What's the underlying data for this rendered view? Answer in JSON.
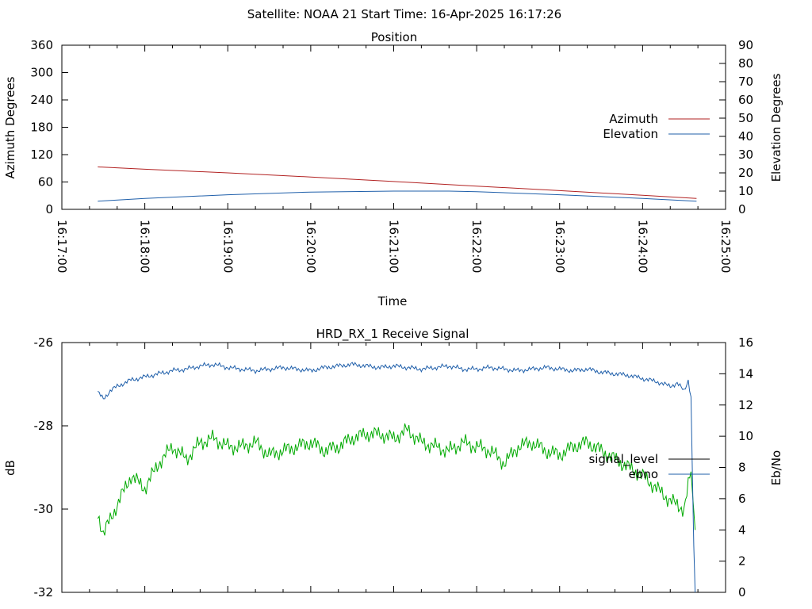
{
  "header": {
    "title": "Satellite: NOAA 21    Start Time: 16-Apr-2025 16:17:26"
  },
  "chart_data": [
    {
      "type": "line",
      "title": "Position",
      "xlabel": "Time",
      "ylabel": "Azimuth Degrees",
      "y2label": "Elevation Degrees",
      "x_ticks": [
        "16:17:00",
        "16:18:00",
        "16:19:00",
        "16:20:00",
        "16:21:00",
        "16:22:00",
        "16:23:00",
        "16:24:00",
        "16:25:00"
      ],
      "xlim_seconds": [
        1020,
        1500
      ],
      "ylim": [
        0,
        360
      ],
      "y_ticks": [
        "0",
        "60",
        "120",
        "180",
        "240",
        "300",
        "360"
      ],
      "y2lim": [
        0,
        90
      ],
      "y2_ticks": [
        "0",
        "10",
        "20",
        "30",
        "40",
        "50",
        "60",
        "70",
        "80",
        "90"
      ],
      "legend": "right",
      "grid": false,
      "series": [
        {
          "name": "Azimuth",
          "axis": "y",
          "color": "#b22222",
          "x_seconds": [
            1046,
            1080,
            1140,
            1200,
            1260,
            1320,
            1380,
            1440,
            1479
          ],
          "values": [
            93,
            88,
            80,
            71,
            61,
            51,
            41,
            31,
            24
          ]
        },
        {
          "name": "Elevation",
          "axis": "y2",
          "color": "#1f5faa",
          "x_seconds": [
            1046,
            1080,
            1140,
            1200,
            1260,
            1300,
            1320,
            1380,
            1440,
            1479
          ],
          "values": [
            4.5,
            6,
            8,
            9.5,
            10,
            10,
            9.7,
            8,
            6,
            4.5
          ]
        }
      ]
    },
    {
      "type": "line",
      "title": "HRD_RX_1 Receive Signal",
      "ylabel": "dB",
      "y2label": "Eb/No",
      "xlim_seconds": [
        1020,
        1500
      ],
      "ylim": [
        -32,
        -26
      ],
      "y_ticks": [
        "-26",
        "-28",
        "-30",
        "-32"
      ],
      "y2lim": [
        0,
        16
      ],
      "y2_ticks": [
        "0",
        "2",
        "4",
        "6",
        "8",
        "10",
        "12",
        "14",
        "16"
      ],
      "legend": "right",
      "grid": false,
      "series": [
        {
          "name": "signal_level",
          "axis": "y",
          "color": "#00aa00",
          "legend_color": "#000000",
          "x_seconds": [
            1046,
            1050,
            1060,
            1070,
            1080,
            1090,
            1100,
            1110,
            1120,
            1130,
            1140,
            1150,
            1160,
            1170,
            1180,
            1190,
            1200,
            1210,
            1220,
            1230,
            1240,
            1250,
            1260,
            1270,
            1280,
            1290,
            1300,
            1310,
            1320,
            1330,
            1340,
            1350,
            1360,
            1370,
            1380,
            1390,
            1400,
            1410,
            1420,
            1430,
            1440,
            1450,
            1460,
            1470,
            1475,
            1478
          ],
          "values": [
            -30.1,
            -30.6,
            -29.9,
            -29.2,
            -29.5,
            -28.9,
            -28.5,
            -28.8,
            -28.4,
            -28.3,
            -28.5,
            -28.5,
            -28.4,
            -28.7,
            -28.6,
            -28.5,
            -28.4,
            -28.6,
            -28.5,
            -28.3,
            -28.2,
            -28.2,
            -28.3,
            -28.1,
            -28.4,
            -28.5,
            -28.6,
            -28.4,
            -28.5,
            -28.6,
            -28.9,
            -28.5,
            -28.4,
            -28.6,
            -28.7,
            -28.5,
            -28.4,
            -28.6,
            -28.8,
            -29.0,
            -29.2,
            -29.5,
            -29.8,
            -30.0,
            -29.1,
            -30.5
          ]
        },
        {
          "name": "ebno",
          "axis": "y2",
          "color": "#1f5faa",
          "x_seconds": [
            1046,
            1050,
            1055,
            1060,
            1070,
            1080,
            1090,
            1100,
            1110,
            1120,
            1130,
            1140,
            1150,
            1160,
            1170,
            1180,
            1190,
            1200,
            1210,
            1220,
            1230,
            1240,
            1250,
            1260,
            1270,
            1280,
            1290,
            1300,
            1310,
            1320,
            1330,
            1340,
            1350,
            1360,
            1370,
            1380,
            1390,
            1400,
            1410,
            1420,
            1430,
            1440,
            1450,
            1460,
            1465,
            1470,
            1473,
            1475,
            1477,
            1478
          ],
          "values": [
            12.8,
            12.4,
            12.9,
            13.2,
            13.6,
            13.8,
            14.0,
            14.2,
            14.3,
            14.5,
            14.6,
            14.4,
            14.3,
            14.2,
            14.3,
            14.4,
            14.3,
            14.2,
            14.4,
            14.5,
            14.6,
            14.5,
            14.4,
            14.5,
            14.4,
            14.3,
            14.4,
            14.5,
            14.3,
            14.3,
            14.4,
            14.3,
            14.2,
            14.3,
            14.4,
            14.3,
            14.2,
            14.3,
            14.1,
            14.0,
            13.9,
            13.7,
            13.5,
            13.2,
            13.4,
            12.9,
            13.6,
            12.5,
            3.0,
            0
          ]
        }
      ]
    }
  ]
}
